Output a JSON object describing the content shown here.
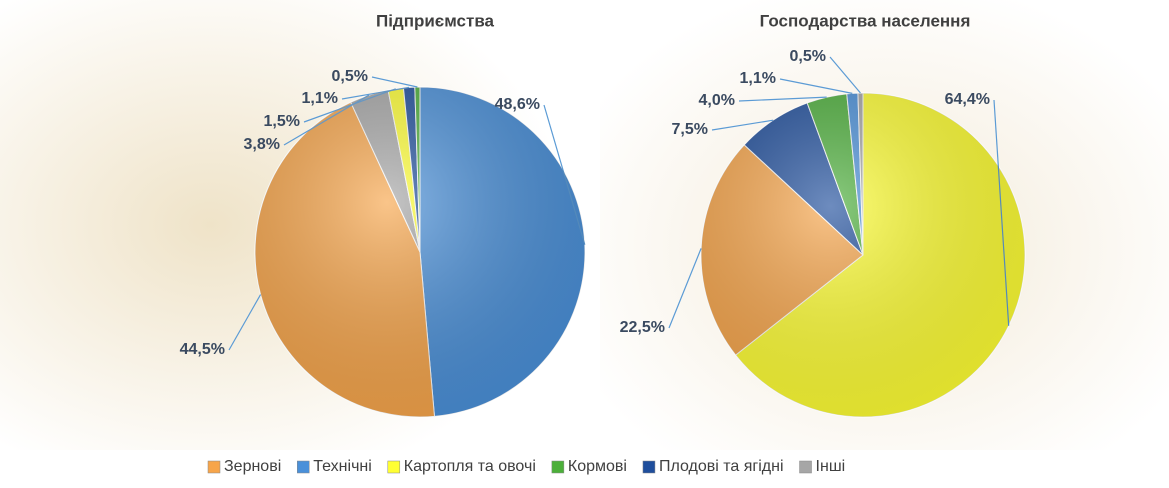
{
  "chart_data": [
    {
      "type": "pie",
      "title": "Підприємства",
      "categories": [
        "Технічні",
        "Зернові",
        "Інші",
        "Картопля та овочі",
        "Плодові та ягідні",
        "Кормові"
      ],
      "values": [
        48.6,
        44.5,
        3.8,
        1.5,
        1.1,
        0.5
      ],
      "value_labels": [
        "48,6%",
        "44,5%",
        "3,8%",
        "1,5%",
        "1,1%",
        "0,5%"
      ],
      "colors": [
        "#4a90d9",
        "#f7a54a",
        "#a6a6a6",
        "#ffff33",
        "#1f4e9c",
        "#4caf3a"
      ]
    },
    {
      "type": "pie",
      "title": "Господарства населення",
      "categories": [
        "Картопля та овочі",
        "Зернові",
        "Плодові та ягідні",
        "Кормові",
        "Технічні",
        "Інші"
      ],
      "values": [
        64.4,
        22.5,
        7.5,
        4.0,
        1.1,
        0.5
      ],
      "value_labels": [
        "64,4%",
        "22,5%",
        "7,5%",
        "4,0%",
        "1,1%",
        "0,5%"
      ],
      "colors": [
        "#ffff33",
        "#f7a54a",
        "#1f4e9c",
        "#4caf3a",
        "#4a90d9",
        "#a6a6a6"
      ]
    }
  ],
  "legend": {
    "items": [
      {
        "name": "Зернові",
        "color": "#f7a54a"
      },
      {
        "name": "Технічні",
        "color": "#4a90d9"
      },
      {
        "name": "Картопля та овочі",
        "color": "#ffff33"
      },
      {
        "name": "Кормові",
        "color": "#4caf3a"
      },
      {
        "name": "Плодові та ягідні",
        "color": "#1f4e9c"
      },
      {
        "name": "Інші",
        "color": "#a6a6a6"
      }
    ]
  }
}
